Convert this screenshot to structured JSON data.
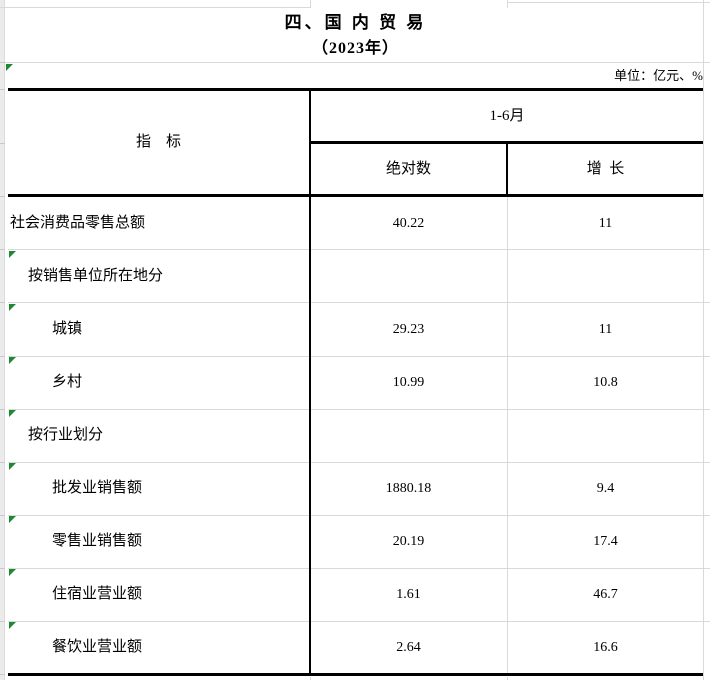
{
  "title": "四、国 内 贸 易",
  "subtitle": "（2023年）",
  "unit_note": "单位：亿元、%",
  "table": {
    "indicator_header": "指    标",
    "period_header": "1-6月",
    "sub_headers": {
      "absolute": "绝对数",
      "growth": "增  长"
    },
    "rows": [
      {
        "label": "社会消费品零售总额",
        "indent": 0,
        "absolute": "40.22",
        "growth": "11",
        "error_marker": false
      },
      {
        "label": "按销售单位所在地分",
        "indent": 1,
        "absolute": "",
        "growth": "",
        "error_marker": true
      },
      {
        "label": "城镇",
        "indent": 2,
        "absolute": "29.23",
        "growth": "11",
        "error_marker": true
      },
      {
        "label": "乡村",
        "indent": 2,
        "absolute": "10.99",
        "growth": "10.8",
        "error_marker": true
      },
      {
        "label": "按行业划分",
        "indent": 1,
        "absolute": "",
        "growth": "",
        "error_marker": true
      },
      {
        "label": "批发业销售额",
        "indent": 2,
        "absolute": "1880.18",
        "growth": "9.4",
        "error_marker": true
      },
      {
        "label": "零售业销售额",
        "indent": 2,
        "absolute": "20.19",
        "growth": "17.4",
        "error_marker": true
      },
      {
        "label": "住宿业营业额",
        "indent": 2,
        "absolute": "1.61",
        "growth": "46.7",
        "error_marker": true
      },
      {
        "label": "餐饮业营业额",
        "indent": 2,
        "absolute": "2.64",
        "growth": "16.6",
        "error_marker": true
      }
    ]
  },
  "colors": {
    "error_marker_green": "#1d8a33",
    "gridline": "#d9d9d9",
    "sheet_edge": "#ebebeb",
    "border": "#000000"
  }
}
